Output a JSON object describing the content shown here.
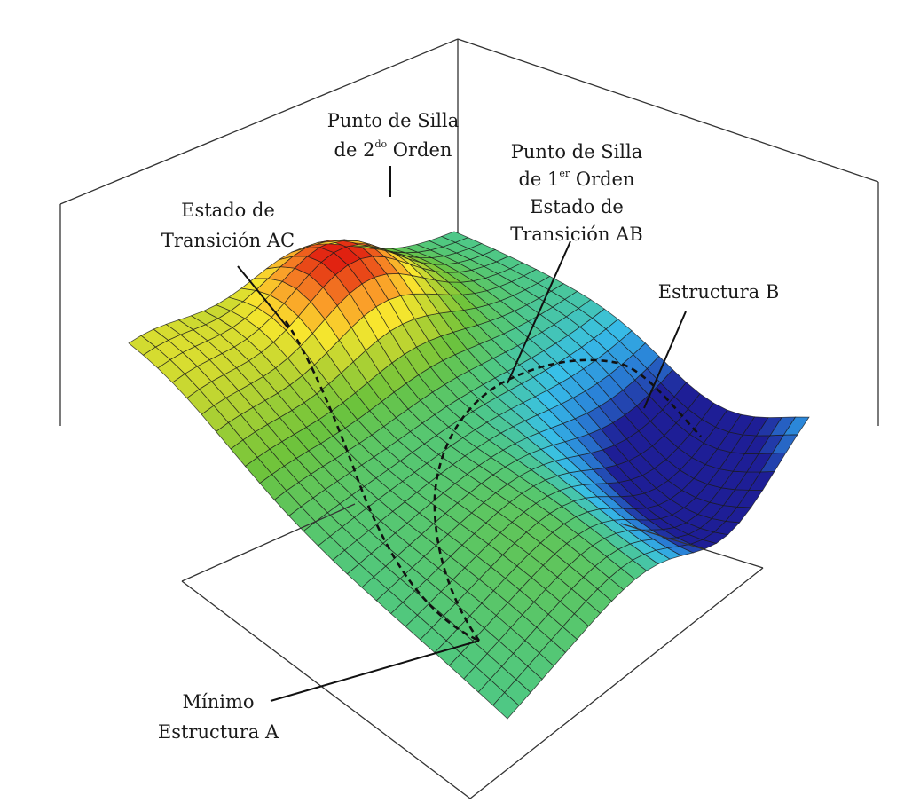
{
  "colors": {
    "background": "#ffffff",
    "grid_lines": "#1a1a1a",
    "box_lines": "#333333",
    "colormap": [
      "#1e1e96",
      "#2a82d8",
      "#38c0e8",
      "#50c880",
      "#6cc33c",
      "#b4d232",
      "#f8e62e",
      "#fa9628",
      "#e02010"
    ]
  },
  "labels": {
    "second_order_saddle": {
      "line1": "Punto de Silla",
      "line2_pre": "de 2",
      "line2_sup": "do",
      "line2_post": " Orden"
    },
    "first_order_saddle": {
      "line1": "Punto de Silla",
      "line2_pre": "de 1",
      "line2_sup": "er",
      "line2_post": " Orden",
      "line3": "Estado de",
      "line4": "Transición AB"
    },
    "transition_state_ac": {
      "line1": "Estado de",
      "line2": "Transición AC"
    },
    "structure_b": {
      "line1": "Estructura B"
    },
    "minimum_a": {
      "line1": "Mínimo",
      "line2": "Estructura A"
    }
  }
}
